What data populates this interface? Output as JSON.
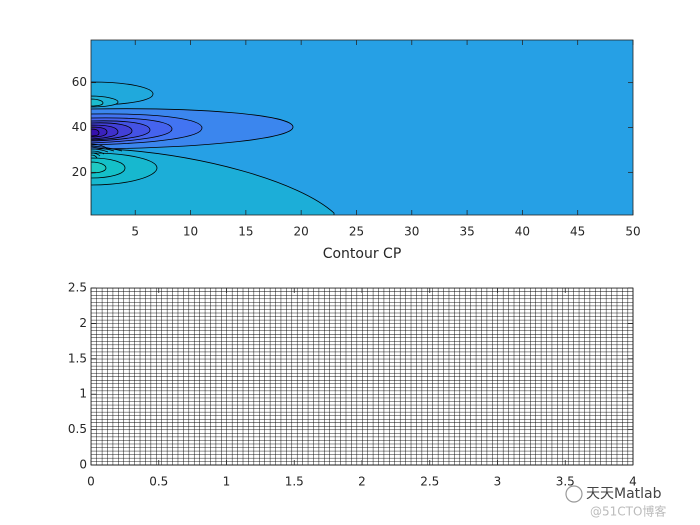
{
  "chart_data": [
    {
      "type": "contour",
      "x_label": "Contour CP",
      "xlim": [
        1,
        50
      ],
      "xticks": [
        5,
        10,
        15,
        20,
        25,
        30,
        35,
        40,
        45,
        50
      ],
      "ylim": [
        1,
        79
      ],
      "yticks": [
        20,
        40,
        60
      ]
    },
    {
      "type": "mesh",
      "xlim": [
        0,
        4
      ],
      "xticks": [
        0,
        0.5,
        1,
        1.5,
        2,
        2.5,
        3,
        3.5,
        4
      ],
      "ylim": [
        0,
        2.5
      ],
      "yticks": [
        0,
        0.5,
        1,
        1.5,
        2,
        2.5
      ]
    }
  ],
  "watermark": {
    "title": "天天Matlab",
    "source": "@51CTO博客"
  }
}
